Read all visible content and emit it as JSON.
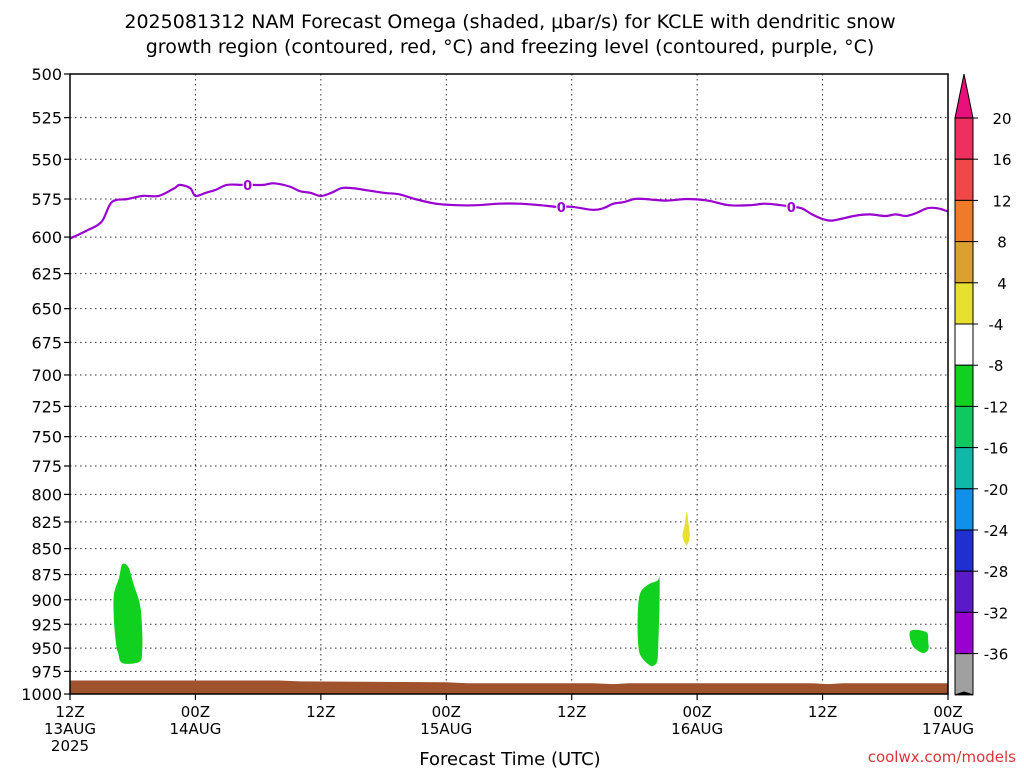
{
  "chart_data": {
    "type": "heatmap",
    "title_line1": "2025081312 NAM Forecast Omega (shaded, μbar/s) for KCLE with dendritic snow",
    "title_line2": "growth region (contoured, red, °C) and freezing level (contoured, purple, °C)",
    "xlabel": "Forecast Time (UTC)",
    "credit": "coolwx.com/models",
    "x_unit": "hours since 2025081312",
    "xlim": [
      0,
      84
    ],
    "y_unit": "mb",
    "ylim": [
      1000,
      500
    ],
    "y_scale": "log-pressure",
    "grid": true,
    "y_ticks": [
      500,
      525,
      550,
      575,
      600,
      625,
      650,
      675,
      700,
      725,
      750,
      775,
      800,
      825,
      850,
      875,
      900,
      925,
      950,
      975,
      1000
    ],
    "x_ticks": [
      {
        "x": 0,
        "line1": "12Z",
        "line2": "13AUG",
        "line3": "2025"
      },
      {
        "x": 12,
        "line1": "00Z",
        "line2": "14AUG",
        "line3": ""
      },
      {
        "x": 24,
        "line1": "12Z",
        "line2": "",
        "line3": ""
      },
      {
        "x": 36,
        "line1": "00Z",
        "line2": "15AUG",
        "line3": ""
      },
      {
        "x": 48,
        "line1": "12Z",
        "line2": "",
        "line3": ""
      },
      {
        "x": 60,
        "line1": "00Z",
        "line2": "16AUG",
        "line3": ""
      },
      {
        "x": 72,
        "line1": "12Z",
        "line2": "",
        "line3": ""
      },
      {
        "x": 84,
        "line1": "00Z",
        "line2": "17AUG",
        "line3": ""
      }
    ],
    "freezing_level": {
      "color": "#9a00d0",
      "contour_label": "0",
      "label_at_x": [
        17,
        47,
        69
      ],
      "points": [
        [
          0,
          601
        ],
        [
          1.5,
          596
        ],
        [
          3,
          590
        ],
        [
          4,
          577
        ],
        [
          5.5,
          575
        ],
        [
          7,
          573
        ],
        [
          8.5,
          573
        ],
        [
          10,
          568
        ],
        [
          10.5,
          566
        ],
        [
          11.5,
          568
        ],
        [
          12,
          573
        ],
        [
          13,
          571
        ],
        [
          14,
          569
        ],
        [
          15,
          566
        ],
        [
          16.5,
          566
        ],
        [
          17.5,
          566
        ],
        [
          18.5,
          566
        ],
        [
          19.5,
          565
        ],
        [
          21,
          567
        ],
        [
          22,
          570
        ],
        [
          23,
          571
        ],
        [
          24,
          573
        ],
        [
          25,
          571
        ],
        [
          26,
          568
        ],
        [
          27,
          568
        ],
        [
          28,
          569
        ],
        [
          30,
          571
        ],
        [
          31.5,
          572
        ],
        [
          33,
          575
        ],
        [
          35,
          578
        ],
        [
          37,
          579
        ],
        [
          39,
          579
        ],
        [
          41,
          578
        ],
        [
          43,
          578
        ],
        [
          45,
          579
        ],
        [
          46.5,
          580
        ],
        [
          48,
          580
        ],
        [
          50,
          582
        ],
        [
          51,
          581
        ],
        [
          52,
          578
        ],
        [
          53,
          577
        ],
        [
          54,
          575
        ],
        [
          55,
          575
        ],
        [
          57,
          576
        ],
        [
          59,
          575
        ],
        [
          61,
          576
        ],
        [
          63,
          579
        ],
        [
          65,
          579
        ],
        [
          66.5,
          578
        ],
        [
          68,
          579
        ],
        [
          69,
          580
        ],
        [
          70,
          581
        ],
        [
          71,
          585
        ],
        [
          72,
          588
        ],
        [
          73,
          589
        ],
        [
          75,
          586
        ],
        [
          76.5,
          585
        ],
        [
          78,
          586
        ],
        [
          79,
          585
        ],
        [
          80,
          586
        ],
        [
          81,
          584
        ],
        [
          82,
          581
        ],
        [
          83,
          581
        ],
        [
          84,
          583
        ]
      ]
    },
    "omega_regions": [
      {
        "color": "#10d020",
        "label": "-8 to -4",
        "points": [
          [
            4.4,
            945
          ],
          [
            4.2,
            920
          ],
          [
            4.2,
            895
          ],
          [
            4.7,
            878
          ],
          [
            5.0,
            865
          ],
          [
            5.6,
            868
          ],
          [
            6.1,
            885
          ],
          [
            6.7,
            905
          ],
          [
            6.9,
            930
          ],
          [
            6.9,
            955
          ],
          [
            6.6,
            965
          ],
          [
            5.0,
            966
          ],
          [
            4.6,
            955
          ]
        ]
      },
      {
        "color": "#10d020",
        "label": "-8 to -4",
        "points": [
          [
            54.4,
            950
          ],
          [
            54.3,
            925
          ],
          [
            54.5,
            895
          ],
          [
            55.3,
            885
          ],
          [
            56.2,
            881
          ],
          [
            56.4,
            878
          ],
          [
            56.4,
            905
          ],
          [
            56.3,
            940
          ],
          [
            56.2,
            963
          ],
          [
            55.8,
            969
          ],
          [
            55.4,
            968
          ],
          [
            54.7,
            960
          ]
        ]
      },
      {
        "color": "#10d020",
        "label": "-8 to -4",
        "points": [
          [
            80.4,
            932
          ],
          [
            81.9,
            933
          ],
          [
            82.1,
            942
          ],
          [
            82.1,
            952
          ],
          [
            81.5,
            955
          ],
          [
            80.6,
            947
          ]
        ]
      },
      {
        "color": "#e8e030",
        "label": "4 to 8",
        "points": [
          [
            58.9,
            846
          ],
          [
            58.6,
            838
          ],
          [
            58.8,
            828
          ],
          [
            59.0,
            816
          ],
          [
            59.2,
            828
          ],
          [
            59.3,
            838
          ],
          [
            59.1,
            846
          ]
        ]
      }
    ],
    "terrain": {
      "color": "#a0522d",
      "bottom_mb": 1000,
      "top": [
        [
          0,
          985
        ],
        [
          20,
          985
        ],
        [
          22,
          986
        ],
        [
          36,
          987
        ],
        [
          38,
          988
        ],
        [
          50,
          988
        ],
        [
          52,
          989
        ],
        [
          53.5,
          988
        ],
        [
          71,
          988
        ],
        [
          72.5,
          989
        ],
        [
          74,
          988
        ],
        [
          84,
          988
        ]
      ]
    },
    "colorbar": {
      "labels": [
        "20",
        "16",
        "12",
        "8",
        "4",
        "-4",
        "-8",
        "-12",
        "-16",
        "-20",
        "-24",
        "-28",
        "-32",
        "-36"
      ],
      "colors": [
        "#ee3060",
        "#f04848",
        "#ee7a2a",
        "#dca030",
        "#e8e030",
        "#ffffff",
        "#10d020",
        "#10c860",
        "#10b8a8",
        "#1090e8",
        "#2030d0",
        "#5a1ac8",
        "#9a00d0",
        "#a0a0a0"
      ],
      "top_arrow_color": "#e8107a",
      "bottom_arrow_color": "#000000"
    }
  }
}
